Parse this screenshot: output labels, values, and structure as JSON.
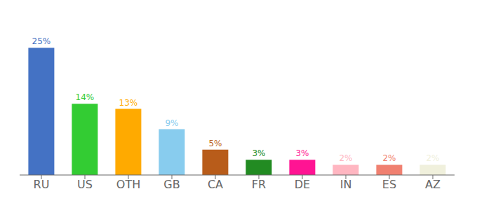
{
  "chart_data": {
    "type": "bar",
    "categories": [
      "RU",
      "US",
      "OTH",
      "GB",
      "CA",
      "FR",
      "DE",
      "IN",
      "ES",
      "AZ"
    ],
    "values": [
      25,
      14,
      13,
      9,
      5,
      3,
      3,
      2,
      2,
      2
    ],
    "value_labels": [
      "25%",
      "14%",
      "13%",
      "9%",
      "5%",
      "3%",
      "3%",
      "2%",
      "2%",
      "2%"
    ],
    "data_labels": true,
    "colors": [
      "#4472c4",
      "#33cc33",
      "#ffaa00",
      "#88ccee",
      "#b85c1a",
      "#228B22",
      "#ff1493",
      "#ffb6c1",
      "#f08070",
      "#f0f0dc"
    ],
    "ylim": [
      0,
      30
    ],
    "tick_labels": "x",
    "grid": false
  }
}
